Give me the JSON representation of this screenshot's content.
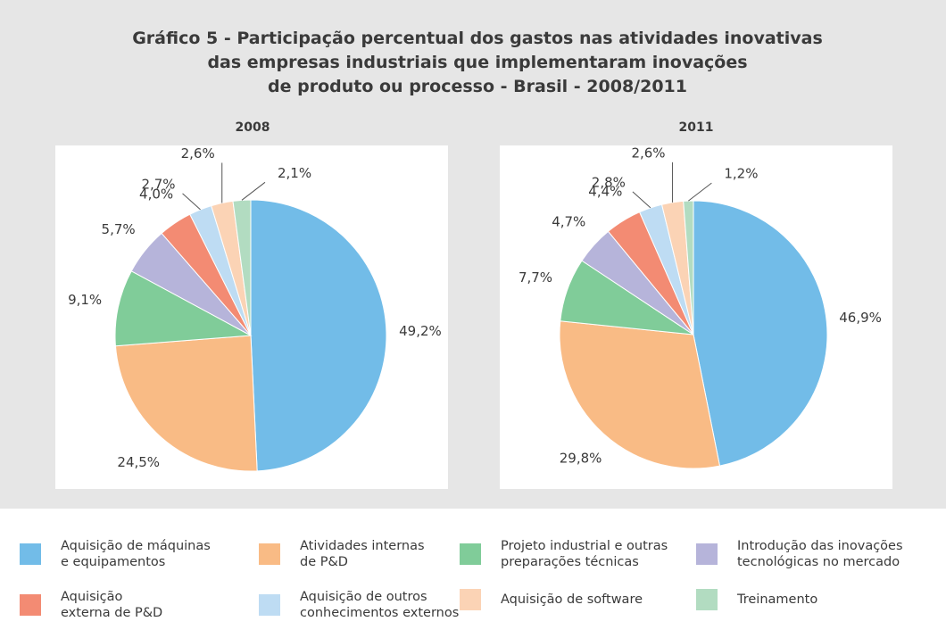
{
  "title": "Gráfico 5 - Participação percentual dos gastos nas atividades inovativas\ndas empresas industriais que implementaram inovações\nde produto ou processo - Brasil - 2008/2011",
  "categories": [
    "Aquisição de máquinas\ne equipamentos",
    "Atividades internas\nde P&D",
    "Projeto industrial e outras\npreparações técnicas",
    "Introdução das inovações\ntecnológicas no mercado",
    "Aquisição\nexterna de P&D",
    "Aquisição de outros\nconhecimentos externos",
    "Aquisição de software",
    "Treinamento"
  ],
  "colors": [
    "#72bce8",
    "#f9bb85",
    "#80cc99",
    "#b6b4da",
    "#f38b73",
    "#bedcf3",
    "#fbd3b5",
    "#b2dcc1"
  ],
  "chart_data": [
    {
      "type": "pie",
      "title": "2008",
      "values": [
        49.2,
        24.5,
        9.1,
        5.7,
        4.0,
        2.7,
        2.6,
        2.1
      ],
      "value_labels": [
        "49,2%",
        "24,5%",
        "9,1%",
        "5,7%",
        "4,0%",
        "2,7%",
        "2,6%",
        "2,1%"
      ]
    },
    {
      "type": "pie",
      "title": "2011",
      "values": [
        46.9,
        29.8,
        7.7,
        4.7,
        4.4,
        2.8,
        2.6,
        1.2
      ],
      "value_labels": [
        "46,9%",
        "29,8%",
        "7,7%",
        "4,7%",
        "4,4%",
        "2,8%",
        "2,6%",
        "1,2%"
      ]
    }
  ]
}
